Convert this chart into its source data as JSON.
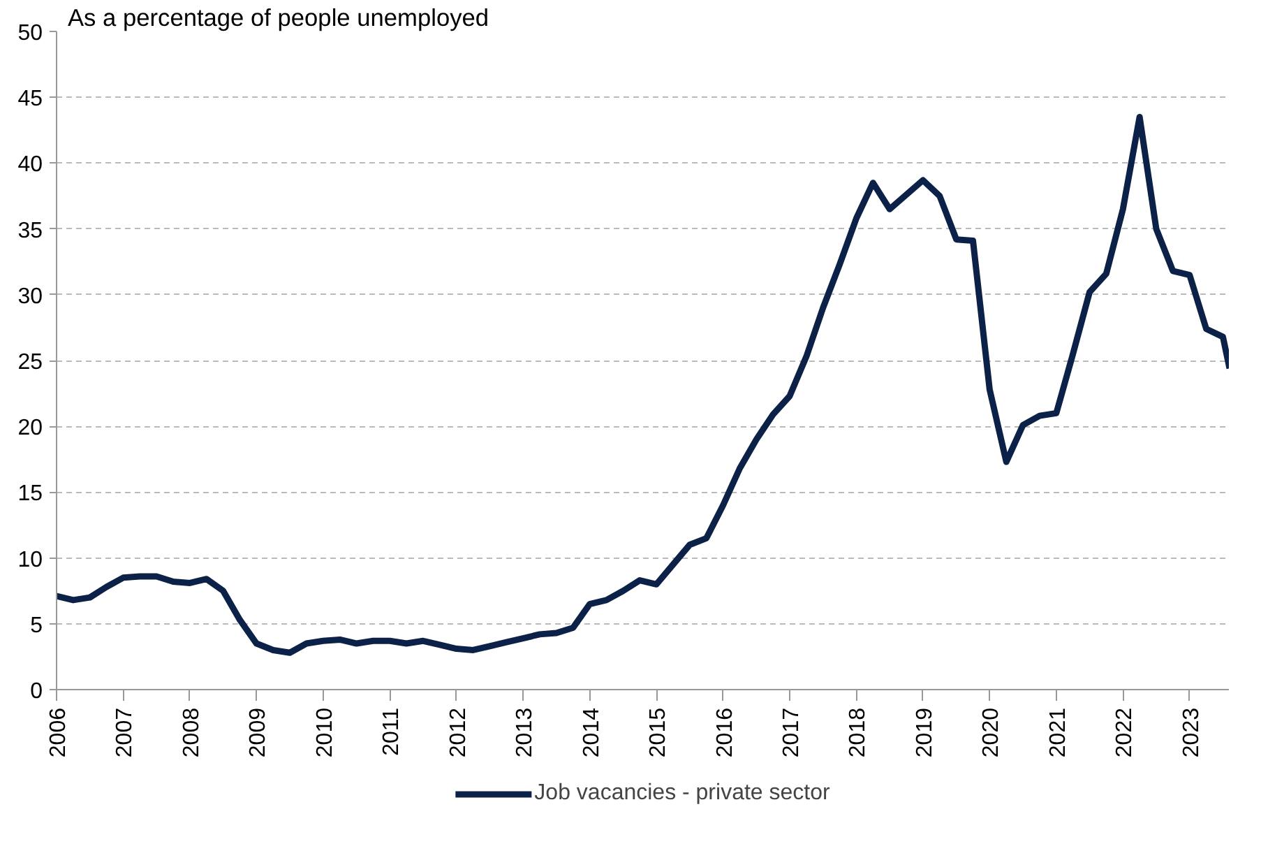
{
  "chart_data": {
    "type": "line",
    "title": "As a percentage of people unemployed",
    "x": [
      2006.0,
      2006.25,
      2006.5,
      2006.75,
      2007.0,
      2007.25,
      2007.5,
      2007.75,
      2008.0,
      2008.25,
      2008.5,
      2008.75,
      2009.0,
      2009.25,
      2009.5,
      2009.75,
      2010.0,
      2010.25,
      2010.5,
      2010.75,
      2011.0,
      2011.25,
      2011.5,
      2011.75,
      2012.0,
      2012.25,
      2012.5,
      2012.75,
      2013.0,
      2013.25,
      2013.5,
      2013.75,
      2014.0,
      2014.25,
      2014.5,
      2014.75,
      2015.0,
      2015.25,
      2015.5,
      2015.75,
      2016.0,
      2016.25,
      2016.5,
      2016.75,
      2017.0,
      2017.25,
      2017.5,
      2017.75,
      2018.0,
      2018.25,
      2018.5,
      2018.75,
      2019.0,
      2019.25,
      2019.5,
      2019.75,
      2020.0,
      2020.25,
      2020.5,
      2020.75,
      2021.0,
      2021.25,
      2021.5,
      2021.75,
      2022.0,
      2022.25,
      2022.5,
      2022.75,
      2023.0,
      2023.25,
      2023.5,
      2023.6
    ],
    "series": [
      {
        "name": "Job vacancies - private sector",
        "color": "#0b2147",
        "values": [
          7.1,
          6.8,
          7.0,
          7.8,
          8.5,
          8.6,
          8.6,
          8.2,
          8.1,
          8.4,
          7.5,
          5.3,
          3.5,
          3.0,
          2.8,
          3.5,
          3.7,
          3.8,
          3.5,
          3.7,
          3.7,
          3.5,
          3.7,
          3.4,
          3.1,
          3.0,
          3.3,
          3.6,
          3.9,
          4.2,
          4.3,
          4.7,
          6.5,
          6.8,
          7.5,
          8.3,
          8.0,
          9.5,
          11.0,
          11.5,
          14.0,
          16.8,
          19.0,
          20.9,
          22.3,
          25.3,
          29.0,
          32.3,
          35.8,
          38.5,
          36.5,
          37.6,
          38.7,
          37.5,
          34.2,
          34.1,
          22.8,
          17.3,
          20.1,
          20.8,
          21.0,
          25.5,
          30.2,
          31.6,
          36.5,
          43.5,
          35.0,
          31.8,
          31.5,
          27.4,
          26.8,
          24.4
        ]
      }
    ],
    "xlim": [
      2006,
      2023.6
    ],
    "xticks": [
      2006,
      2007,
      2008,
      2009,
      2010,
      2011,
      2012,
      2013,
      2014,
      2015,
      2016,
      2017,
      2018,
      2019,
      2020,
      2021,
      2022,
      2023
    ],
    "ylim": [
      0,
      50
    ],
    "yticks": [
      0,
      5,
      10,
      15,
      20,
      25,
      30,
      35,
      40,
      45,
      50
    ],
    "grid": "y",
    "legend": "bottom",
    "line_style": "solid",
    "marker": "none"
  }
}
